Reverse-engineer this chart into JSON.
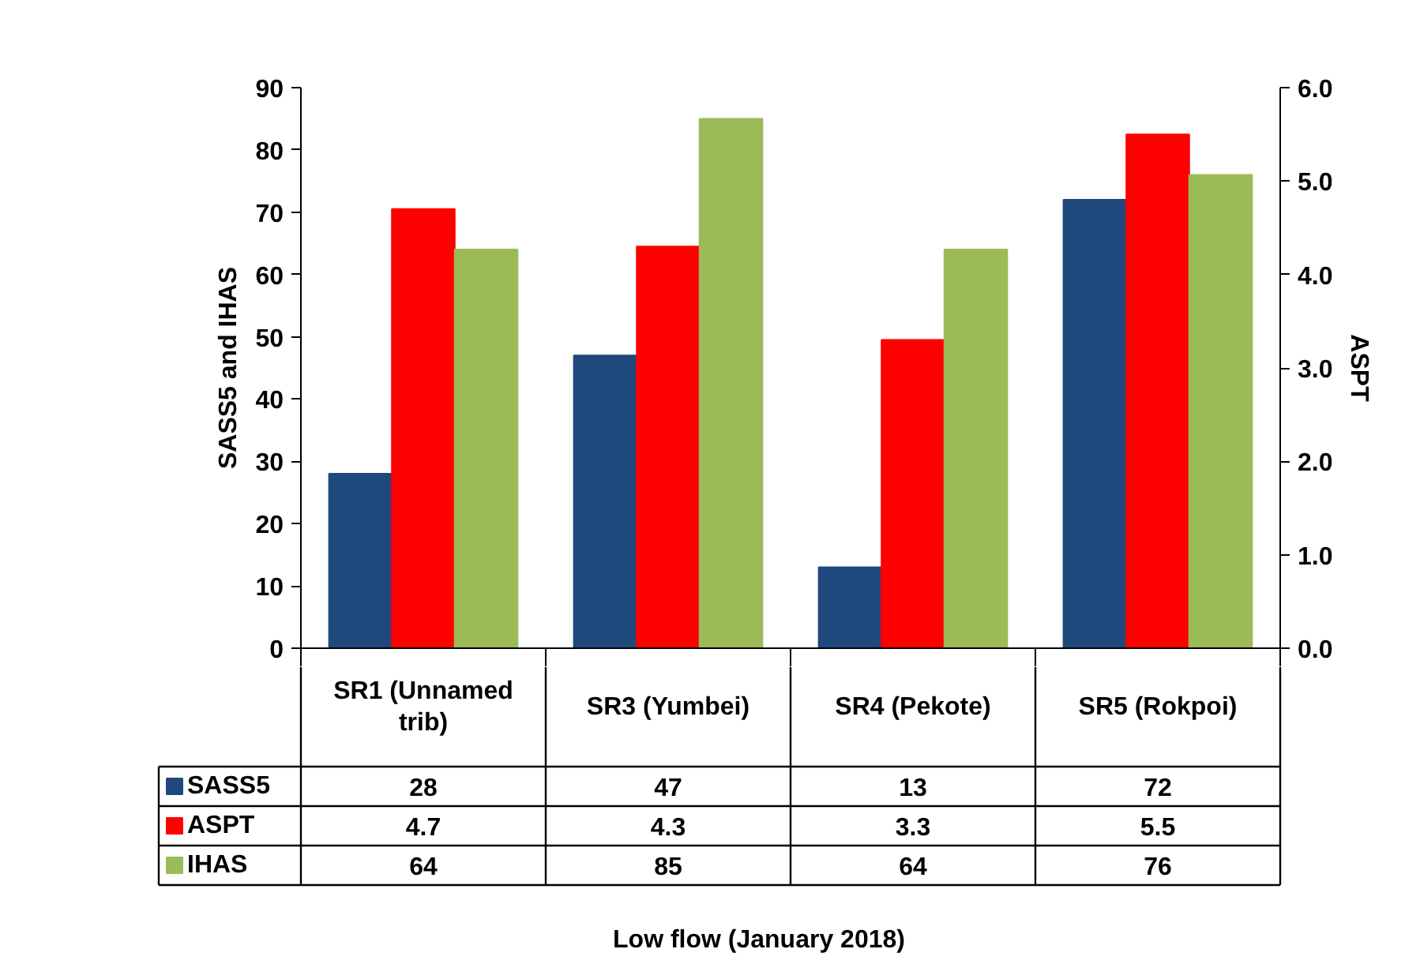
{
  "chart_data": {
    "type": "bar",
    "categories": [
      "SR1 (Unnamed trib)",
      "SR3 (Yumbei)",
      "SR4 (Pekote)",
      "SR5 (Rokpoi)"
    ],
    "series": [
      {
        "name": "SASS5",
        "color": "#1f497d",
        "values": [
          28,
          47,
          13,
          72
        ]
      },
      {
        "name": "ASPT",
        "color": "#ff0000",
        "values": [
          4.7,
          4.3,
          3.3,
          5.5
        ],
        "axis": "y2"
      },
      {
        "name": "IHAS",
        "color": "#9bbb59",
        "values": [
          64,
          85,
          64,
          76
        ]
      }
    ],
    "ylim": [
      0,
      90
    ],
    "yticks": [
      0,
      10,
      20,
      30,
      40,
      50,
      60,
      70,
      80,
      90
    ],
    "y2lim": [
      0,
      6
    ],
    "y2ticks": [
      {
        "value": 0,
        "label": "0.0"
      },
      {
        "value": 1,
        "label": "1.0"
      },
      {
        "value": 2,
        "label": "2.0"
      },
      {
        "value": 3,
        "label": "3.0"
      },
      {
        "value": 4,
        "label": "4.0"
      },
      {
        "value": 5,
        "label": "5.0"
      },
      {
        "value": 6,
        "label": "6.0"
      }
    ],
    "ylabel": "SASS5 and IHAS",
    "y2label": "ASPT",
    "annotations": [
      "Low flow (January 2018)"
    ],
    "legend": "bottom left",
    "data_labels": true
  }
}
